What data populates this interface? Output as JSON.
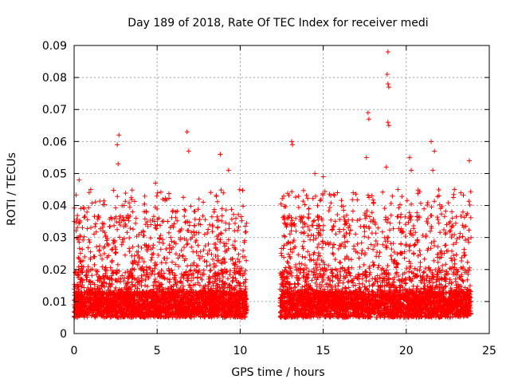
{
  "chart_data": {
    "type": "scatter",
    "title": "Day 189 of 2018, Rate Of TEC Index for receiver medi",
    "xlabel": "GPS time / hours",
    "ylabel": "ROTI / TECUs",
    "xlim": [
      0,
      25
    ],
    "ylim": [
      0,
      0.09
    ],
    "xticks": [
      "0",
      "5",
      "10",
      "15",
      "20",
      "25"
    ],
    "yticks": [
      "0",
      "0.01",
      "0.02",
      "0.03",
      "0.04",
      "0.05",
      "0.06",
      "0.07",
      "0.08",
      "0.09"
    ],
    "grid": true,
    "marker": "+",
    "color": "#ff0000",
    "data_gap_hours": [
      10.4,
      12.4
    ],
    "coverage_hours": [
      [
        0.0,
        10.4
      ],
      [
        12.4,
        23.9
      ]
    ],
    "typical_range": [
      0.005,
      0.02
    ],
    "notable_points": [
      {
        "x": 2.7,
        "y": 0.062
      },
      {
        "x": 2.6,
        "y": 0.059
      },
      {
        "x": 2.65,
        "y": 0.053
      },
      {
        "x": 6.8,
        "y": 0.063
      },
      {
        "x": 6.9,
        "y": 0.057
      },
      {
        "x": 8.8,
        "y": 0.056
      },
      {
        "x": 9.3,
        "y": 0.051
      },
      {
        "x": 13.1,
        "y": 0.06
      },
      {
        "x": 13.15,
        "y": 0.059
      },
      {
        "x": 17.7,
        "y": 0.069
      },
      {
        "x": 17.75,
        "y": 0.067
      },
      {
        "x": 17.6,
        "y": 0.055
      },
      {
        "x": 18.9,
        "y": 0.088
      },
      {
        "x": 18.85,
        "y": 0.081
      },
      {
        "x": 18.9,
        "y": 0.078
      },
      {
        "x": 18.95,
        "y": 0.077
      },
      {
        "x": 18.9,
        "y": 0.066
      },
      {
        "x": 18.95,
        "y": 0.065
      },
      {
        "x": 18.8,
        "y": 0.052
      },
      {
        "x": 20.2,
        "y": 0.055
      },
      {
        "x": 20.3,
        "y": 0.051
      },
      {
        "x": 21.5,
        "y": 0.06
      },
      {
        "x": 21.7,
        "y": 0.057
      },
      {
        "x": 21.6,
        "y": 0.051
      },
      {
        "x": 23.8,
        "y": 0.054
      },
      {
        "x": 4.9,
        "y": 0.047
      },
      {
        "x": 0.3,
        "y": 0.048
      },
      {
        "x": 14.5,
        "y": 0.05
      },
      {
        "x": 15.0,
        "y": 0.049
      },
      {
        "x": 1.0,
        "y": 0.045
      },
      {
        "x": 19.5,
        "y": 0.045
      },
      {
        "x": 22.9,
        "y": 0.045
      }
    ]
  }
}
